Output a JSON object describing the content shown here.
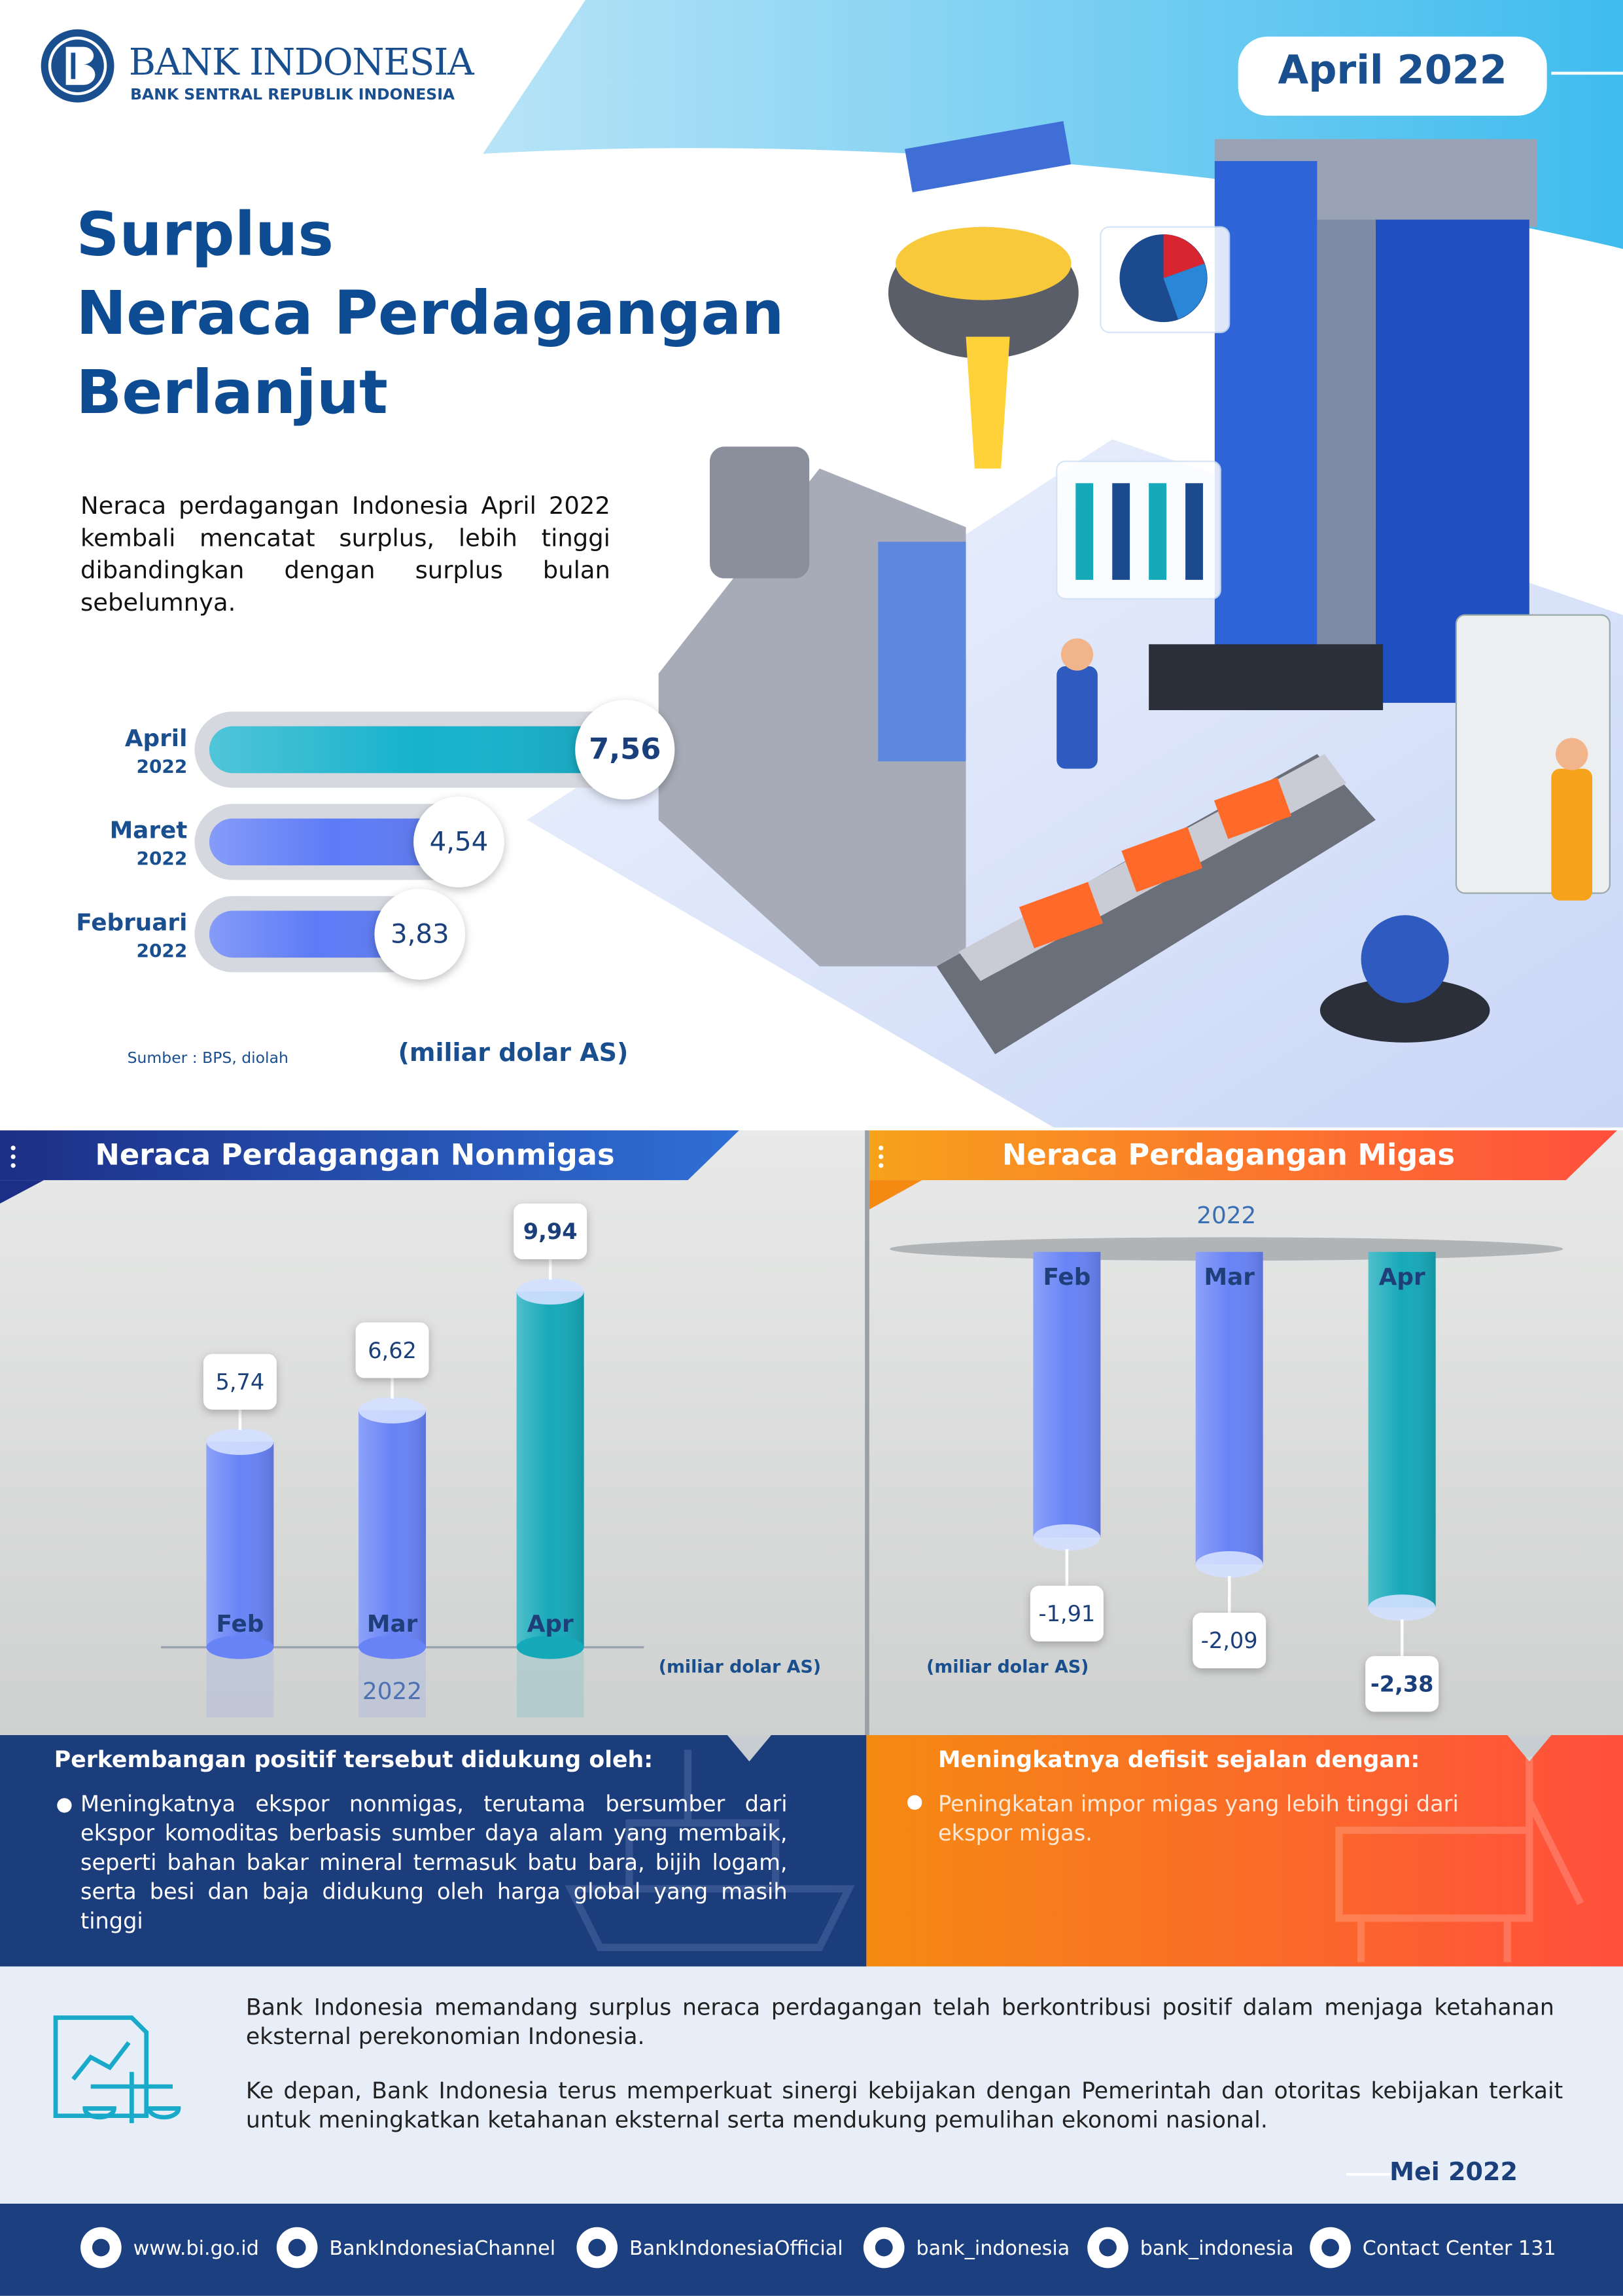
{
  "header": {
    "brand": "BANK INDONESIA",
    "tagline": "BANK SENTRAL REPUBLIK INDONESIA",
    "period": "April 2022"
  },
  "title_lines": [
    "Surplus",
    "Neraca Perdagangan",
    "Berlanjut"
  ],
  "intro": "Neraca perdagangan Indonesia April 2022 kembali mencatat surplus, lebih tinggi dibandingkan dengan surplus bulan sebelumnya.",
  "chart_data": [
    {
      "type": "bar",
      "orientation": "horizontal",
      "categories": [
        "April",
        "Maret",
        "Februari"
      ],
      "category_years": [
        "2022",
        "2022",
        "2022"
      ],
      "values": [
        7.56,
        4.54,
        3.83
      ],
      "value_labels": [
        "7,56",
        "4,54",
        "3,83"
      ],
      "colors": [
        "#16b2cc",
        "#5d7bf6",
        "#5d7bf6"
      ],
      "source": "Sumber : BPS, diolah",
      "unit": "(miliar dolar AS)"
    },
    {
      "type": "bar",
      "orientation": "vertical",
      "title": "Neraca Perdagangan Nonmigas",
      "categories": [
        "Feb",
        "Mar",
        "Apr"
      ],
      "values": [
        5.74,
        6.62,
        9.94
      ],
      "value_labels": [
        "5,74",
        "6,62",
        "9,94"
      ],
      "colors": [
        "#6883f6",
        "#6883f6",
        "#16a9b9"
      ],
      "x_label": "2022",
      "unit": "(miliar dolar AS)"
    },
    {
      "type": "bar",
      "orientation": "vertical",
      "title": "Neraca Perdagangan Migas",
      "categories": [
        "Feb",
        "Mar",
        "Apr"
      ],
      "values": [
        -1.91,
        -2.09,
        -2.38
      ],
      "value_labels": [
        "-1,91",
        "-2,09",
        "-2,38"
      ],
      "colors": [
        "#6883f6",
        "#6883f6",
        "#16a9b9"
      ],
      "x_label": "2022",
      "unit": "(miliar dolar AS)"
    }
  ],
  "panels": [
    {
      "heading": "Perkembangan positif tersebut didukung oleh:",
      "bullet": "Meningkatnya ekspor nonmigas, terutama bersumber dari ekspor komoditas berbasis sumber daya alam yang membaik, seperti bahan bakar mineral termasuk batu bara, bijih logam, serta besi dan baja didukung oleh harga global yang masih tinggi"
    },
    {
      "heading": "Meningkatnya defisit sejalan dengan:",
      "bullet": "Peningkatan impor migas yang lebih tinggi dari ekspor migas."
    }
  ],
  "closing": [
    "Bank Indonesia memandang surplus neraca perdagangan telah berkontribusi positif dalam menjaga ketahanan eksternal perekonomian Indonesia.",
    "Ke depan, Bank Indonesia terus memperkuat sinergi kebijakan dengan Pemerintah dan otoritas kebijakan terkait untuk meningkatkan ketahanan eksternal serta mendukung pemulihan ekonomi nasional."
  ],
  "release_date": "Mei 2022",
  "footer_links": [
    "www.bi.go.id",
    "BankIndonesiaChannel",
    "BankIndonesiaOfficial",
    "bank_indonesia",
    "bank_indonesia",
    "Contact Center 131"
  ]
}
